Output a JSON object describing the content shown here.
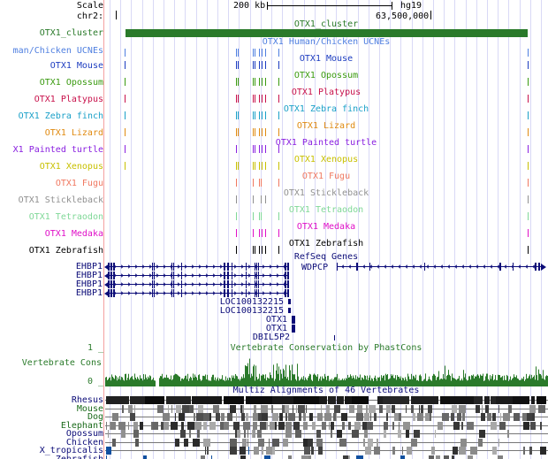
{
  "header": {
    "scale_label": "Scale",
    "scale_value": "200 kb",
    "assembly": "hg19",
    "chrom_label": "chr2:",
    "position": "63,500,000"
  },
  "cluster": {
    "label": "OTX1_cluster",
    "title": "OTX1_cluster",
    "color": "#2a7a2a"
  },
  "ucne": {
    "label": "man/Chicken UCNEs",
    "title": "OTX1 Human/Chicken UCNEs",
    "color": "#4f7fe0"
  },
  "species_tracks": [
    {
      "label": "OTX1 Mouse",
      "title": "OTX1 Mouse",
      "color": "#1c3cc0"
    },
    {
      "label": "OTX1 Opossum",
      "title": "OTX1 Opossum",
      "color": "#3a9a10"
    },
    {
      "label": "OTX1 Platypus",
      "title": "OTX1 Platypus",
      "color": "#c8104a"
    },
    {
      "label": "OTX1 Zebra finch",
      "title": "OTX1 Zebra finch",
      "color": "#1aa0c8"
    },
    {
      "label": "OTX1 Lizard",
      "title": "OTX1 Lizard",
      "color": "#e08a10"
    },
    {
      "label": "X1 Painted turtle",
      "title": "OTX1 Painted turtle",
      "color": "#8a20e0"
    },
    {
      "label": "OTX1 Xenopus",
      "title": "OTX1 Xenopus",
      "color": "#c8c000"
    },
    {
      "label": "OTX1 Fugu",
      "title": "OTX1 Fugu",
      "color": "#f07860"
    },
    {
      "label": "OTX1 Stickleback",
      "title": "OTX1 Stickleback",
      "color": "#909090"
    },
    {
      "label": "OTX1 Tetraodon",
      "title": "OTX1 Tetraodon",
      "color": "#80d898"
    },
    {
      "label": "OTX1 Medaka",
      "title": "OTX1 Medaka",
      "color": "#e010c8"
    },
    {
      "label": "OTX1 Zebrafish",
      "title": "OTX1 Zebrafish",
      "color": "#000000"
    }
  ],
  "refseq": {
    "title": "RefSeq Genes",
    "color": "#0c0c78",
    "genes": [
      "EHBP1",
      "EHBP1",
      "EHBP1",
      "EHBP1",
      "LOC100132215",
      "LOC100132215",
      "OTX1",
      "OTX1",
      "DBIL5P2"
    ],
    "right_gene": "WDPCP"
  },
  "cons": {
    "title": "Vertebrate Conservation by PhastCons",
    "label": "Vertebrate Cons",
    "ymax": "1 _",
    "ymin": "0 _",
    "color": "#2a7a2a"
  },
  "multiz": {
    "title": "Multiz Alignments of 46 Vertebrates",
    "species": [
      {
        "name": "Rhesus",
        "color": "#0c0c78"
      },
      {
        "name": "Mouse",
        "color": "#1a6a1a"
      },
      {
        "name": "Dog",
        "color": "#1a6a1a"
      },
      {
        "name": "Elephant",
        "color": "#1a6a1a"
      },
      {
        "name": "Opossum",
        "color": "#0c0c78"
      },
      {
        "name": "Chicken",
        "color": "#0c0c78"
      },
      {
        "name": "X_tropicalis",
        "color": "#0c0c78"
      },
      {
        "name": "Zebrafish",
        "color": "#0c0c78"
      }
    ]
  }
}
